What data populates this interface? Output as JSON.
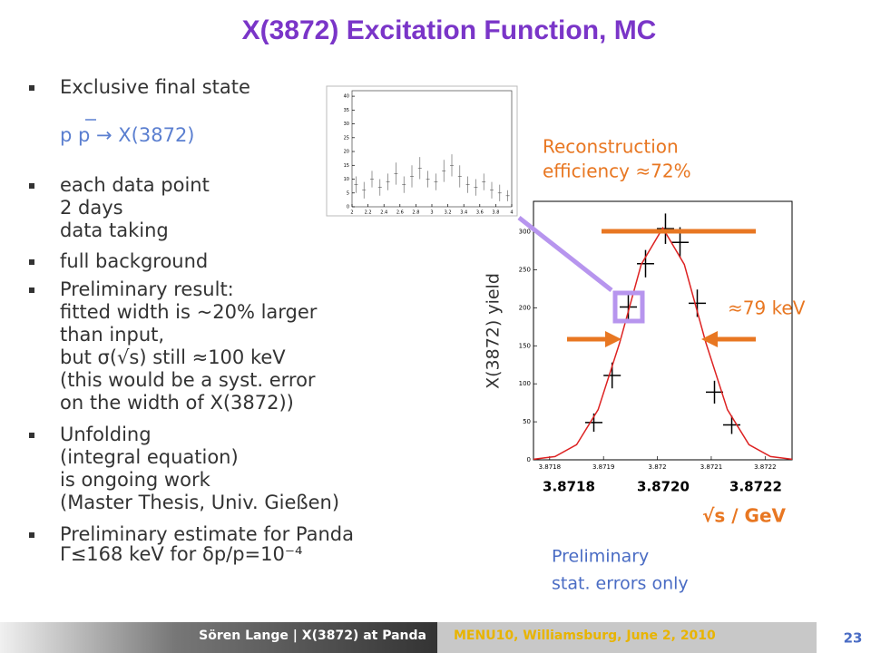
{
  "slide": {
    "title": "X(3872) Excitation Function, MC",
    "reaction": "p p → X(3872)",
    "bullets": [
      [
        "Exclusive final state"
      ],
      [
        "each data point",
        "2 days",
        "data taking"
      ],
      [
        "full background"
      ],
      [
        "Preliminary result:",
        "fitted width is ~20% larger",
        "than input,",
        "but σ(√s) still ≈100 keV",
        "(this would be a syst. error",
        "on the width of X(3872))"
      ],
      [
        "Unfolding",
        "(integral equation)",
        "is ongoing work",
        "(Master Thesis, Univ. Gießen)"
      ],
      [
        "Preliminary estimate for Panda",
        "Γ≤168 keV for δp/p=10⁻⁴"
      ]
    ],
    "efficiency": [
      "Reconstruction",
      "efficiency ≈72%"
    ],
    "width_note": "≈79 keV",
    "big_x_labels": [
      "3.8718",
      "3.8720",
      "3.8722"
    ],
    "note": [
      "Preliminary",
      "stat. errors only"
    ],
    "footer_author": "Sören Lange | X(3872) at Panda",
    "footer_event": "MENU10, Williamsburg, June 2, 2010",
    "page": "23"
  },
  "chart_data": [
    {
      "type": "scatter",
      "x_label": "√s / GeV",
      "y_label": "X(3872) yield",
      "xlim": [
        3.87177,
        3.87225
      ],
      "ylim": [
        0,
        340
      ],
      "xticks": [
        3.8718,
        3.8719,
        3.872,
        3.8721,
        3.8722
      ],
      "yticks": [
        0,
        50,
        100,
        150,
        200,
        250,
        300
      ],
      "series": [
        {
          "name": "MC",
          "color": "#000000",
          "x": [
            3.871882,
            3.871916,
            3.871946,
            3.871978,
            3.872015,
            3.872042,
            3.872074,
            3.872106,
            3.872138
          ],
          "values": [
            49,
            111,
            201,
            258,
            304,
            286,
            206,
            89,
            46
          ],
          "errors": [
            12,
            17,
            18,
            18,
            20,
            20,
            18,
            15,
            12
          ],
          "xerr": 1.6e-05
        },
        {
          "name": "fit",
          "color": "#dd2222",
          "x": [
            3.87177,
            3.87181,
            3.87185,
            3.87189,
            3.87193,
            3.87197,
            3.87201,
            3.87205,
            3.87209,
            3.87213,
            3.87217,
            3.87221,
            3.87225
          ],
          "values": [
            0.7,
            4.3,
            19.9,
            66,
            154,
            257,
            305,
            257,
            154,
            66,
            19.9,
            4.3,
            0.7
          ]
        }
      ]
    },
    {
      "type": "scatter",
      "xlim": [
        2,
        4
      ],
      "ylim": [
        0,
        42
      ],
      "xticks": [
        2,
        2.2,
        2.4,
        2.6,
        2.8,
        3,
        3.2,
        3.4,
        3.6,
        3.8,
        4
      ],
      "yticks": [
        0,
        5,
        10,
        15,
        20,
        25,
        30,
        35,
        40
      ],
      "series": [
        {
          "name": "inset",
          "color": "#555555",
          "x": [
            2.05,
            2.15,
            2.25,
            2.35,
            2.45,
            2.55,
            2.65,
            2.75,
            2.85,
            2.95,
            3.05,
            3.15,
            3.25,
            3.35,
            3.45,
            3.55,
            3.65,
            3.75,
            3.85,
            3.95
          ],
          "values": [
            8,
            6,
            10,
            7,
            9,
            12,
            8,
            11,
            14,
            10,
            9,
            13,
            15,
            11,
            8,
            7,
            9,
            6,
            5,
            4
          ],
          "errors": [
            3,
            3,
            3,
            3,
            3,
            4,
            3,
            4,
            4,
            3,
            3,
            4,
            4,
            4,
            3,
            3,
            3,
            3,
            3,
            2
          ]
        }
      ]
    }
  ]
}
